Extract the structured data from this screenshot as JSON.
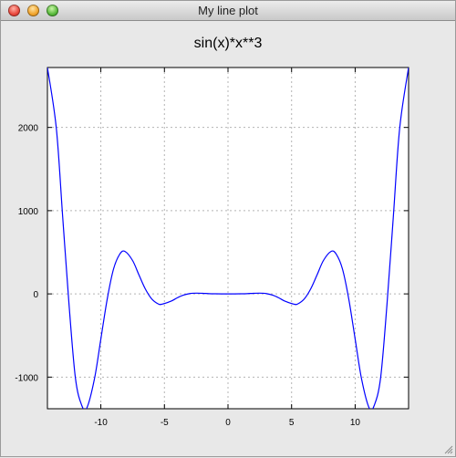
{
  "window": {
    "title": "My line plot",
    "controls": [
      "close-icon",
      "minimize-icon",
      "zoom-icon"
    ]
  },
  "chart_data": {
    "type": "line",
    "title": "sin(x)*x**3",
    "xlabel": "",
    "ylabel": "",
    "function": "sin(x)*x**3",
    "xlim": [
      -14.2,
      14.2
    ],
    "ylim": [
      -1380,
      2720
    ],
    "xticks": [
      -10,
      -5,
      0,
      5,
      10
    ],
    "yticks": [
      -1000,
      0,
      1000,
      2000
    ],
    "grid": true,
    "series": [
      {
        "color": "#0000ff",
        "x": [
          -14.2,
          -13.5,
          -13.0,
          -12.5,
          -12.0,
          -11.5,
          -11.1,
          -10.5,
          -10.0,
          -9.5,
          -9.0,
          -8.5,
          -8.1,
          -7.5,
          -7.0,
          -6.5,
          -6.0,
          -5.5,
          -5.2,
          -4.5,
          -4.0,
          -3.5,
          -3.0,
          -2.5,
          -2.0,
          -1.5,
          -1.0,
          -0.5,
          0.0,
          0.5,
          1.0,
          1.5,
          2.0,
          2.5,
          3.0,
          3.5,
          4.0,
          4.5,
          5.2,
          5.5,
          6.0,
          6.5,
          7.0,
          7.5,
          8.1,
          8.5,
          9.0,
          9.5,
          10.0,
          10.5,
          11.1,
          11.5,
          12.0,
          12.5,
          13.0,
          13.5,
          14.2
        ],
        "y": [
          2720,
          1990,
          925,
          -130,
          -1010,
          -1340,
          -1370,
          -1020,
          -544,
          -64,
          300,
          480,
          510,
          400,
          227,
          59,
          -60,
          -119,
          -124,
          -89,
          -48,
          -15,
          4,
          9,
          7,
          3,
          1,
          0,
          0,
          0,
          1,
          3,
          7,
          9,
          4,
          -15,
          -48,
          -89,
          -124,
          -119,
          -60,
          59,
          227,
          400,
          510,
          480,
          300,
          -64,
          -544,
          -1020,
          -1370,
          -1340,
          -1010,
          -130,
          925,
          1990,
          2720
        ]
      }
    ]
  }
}
